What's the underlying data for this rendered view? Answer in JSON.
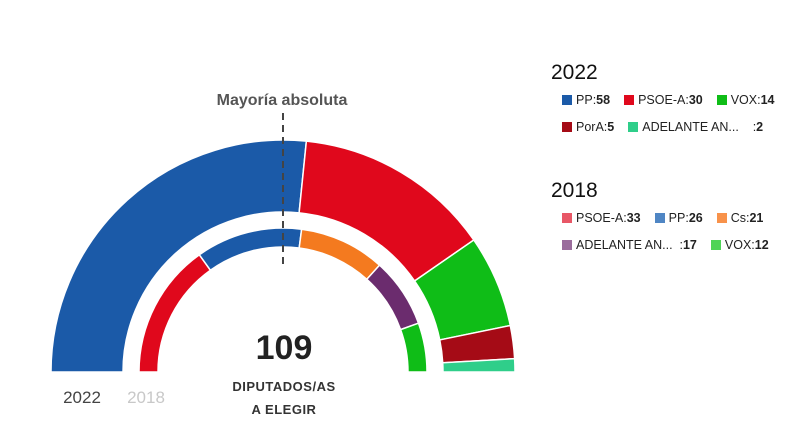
{
  "chart_data": {
    "type": "parliament",
    "annotation": "Mayoría absoluta",
    "total_seats": "109",
    "total_label_line1": "DIPUTADOS/AS",
    "total_label_line2": "A ELEGIR",
    "outer_label": "2022",
    "inner_label": "2018",
    "series": [
      {
        "name": "2022",
        "parties": [
          {
            "party": "PP",
            "seats": 58,
            "color": "#1b5aa8"
          },
          {
            "party": "PSOE-A",
            "seats": 30,
            "color": "#e0081c"
          },
          {
            "party": "VOX",
            "seats": 14,
            "color": "#0fbd17"
          },
          {
            "party": "PorA",
            "seats": 5,
            "color": "#a50b16"
          },
          {
            "party": "ADELANTE AN...",
            "seats": 2,
            "color": "#2fce8a"
          }
        ]
      },
      {
        "name": "2018",
        "parties": [
          {
            "party": "PSOE-A",
            "seats": 33,
            "color": "#e0081c"
          },
          {
            "party": "PP",
            "seats": 26,
            "color": "#1b5aa8"
          },
          {
            "party": "Cs",
            "seats": 21,
            "color": "#f47a1f"
          },
          {
            "party": "ADELANTE AN...",
            "seats": 17,
            "color": "#6b2c6e"
          },
          {
            "party": "VOX",
            "seats": 12,
            "color": "#0fbd17"
          }
        ]
      }
    ]
  },
  "legend": {
    "y2022": {
      "title": "2022",
      "items": [
        {
          "label": "PP",
          "value": "58",
          "color": "#1b5aa8"
        },
        {
          "label": "PSOE-A",
          "value": "30",
          "color": "#e0081c"
        },
        {
          "label": "VOX",
          "value": "14",
          "color": "#0fbd17"
        },
        {
          "label": "PorA",
          "value": "5",
          "color": "#a50b16"
        },
        {
          "label": "ADELANTE AN...",
          "value": "2",
          "color": "#2fce8a"
        }
      ]
    },
    "y2018": {
      "title": "2018",
      "items": [
        {
          "label": "PSOE-A",
          "value": "33",
          "color": "#e85766"
        },
        {
          "label": "PP",
          "value": "26",
          "color": "#4f86c4"
        },
        {
          "label": "Cs",
          "value": "21",
          "color": "#f8924a"
        },
        {
          "label": "ADELANTE AN...",
          "value": "17",
          "color": "#9a6c9c"
        },
        {
          "label": "VOX",
          "value": "12",
          "color": "#4fd457"
        }
      ]
    }
  }
}
